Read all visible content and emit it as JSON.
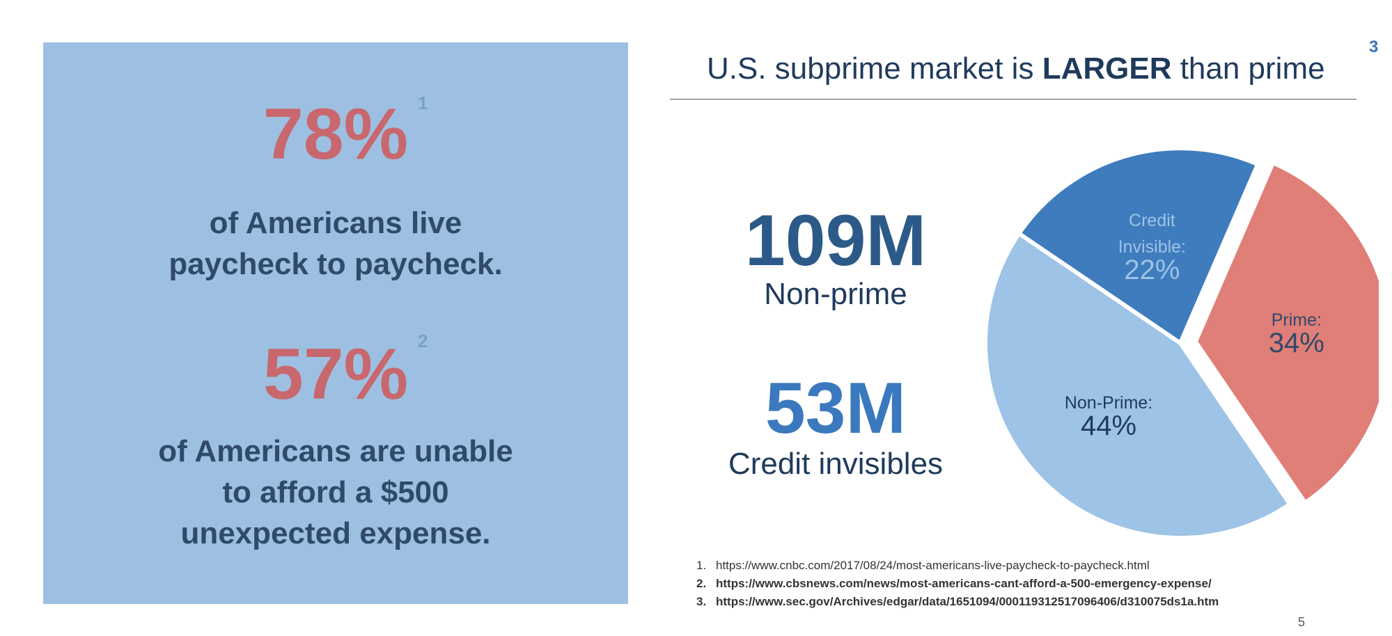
{
  "left_panel": {
    "stat1_value": "78%",
    "stat1_sup": "1",
    "stat1_line1": "of Americans live",
    "stat1_line2": "paycheck to paycheck.",
    "stat2_value": "57%",
    "stat2_sup": "2",
    "stat2_line1": "of Americans are unable",
    "stat2_line2": "to afford a $500",
    "stat2_line3": "unexpected expense."
  },
  "title": {
    "prefix": "U.S. subprime market is ",
    "bold": "LARGER",
    "suffix": " than prime"
  },
  "corner_number": "3",
  "figures": {
    "nonprime_value": "109M",
    "nonprime_label": "Non-prime",
    "invisible_value": "53M",
    "invisible_label": "Credit invisibles"
  },
  "chart_data": {
    "type": "pie",
    "slices": [
      {
        "label_lines": [
          "Prime:"
        ],
        "value": 34,
        "value_label": "34%",
        "color": "#e07e78",
        "text_color": "#2f4a6a",
        "exploded": true
      },
      {
        "label_lines": [
          "Non-Prime:"
        ],
        "value": 44,
        "value_label": "44%",
        "color": "#9dc3e6",
        "text_color": "#1f3a5c",
        "exploded": false
      },
      {
        "label_lines": [
          "Credit",
          "Invisible:"
        ],
        "value": 22,
        "value_label": "22%",
        "color": "#3f7cbd",
        "text_color": "#9dc3e6",
        "exploded": false
      }
    ]
  },
  "footnotes": [
    {
      "num": "1.",
      "text": "https://www.cnbc.com/2017/08/24/most-americans-live-paycheck-to-paycheck.html",
      "bold": false
    },
    {
      "num": "2.",
      "text": "https://www.cbsnews.com/news/most-americans-cant-afford-a-500-emergency-expense/",
      "bold": true
    },
    {
      "num": "3.",
      "text": "https://www.sec.gov/Archives/edgar/data/1651094/000119312517096406/d310075ds1a.htm",
      "bold": true
    }
  ],
  "page_number": "5",
  "colors": {
    "panel_bg": "#9dc0e2",
    "stat_red": "#c8676d",
    "navy": "#1f3a5c",
    "blue_bold": "#3a74b3"
  }
}
